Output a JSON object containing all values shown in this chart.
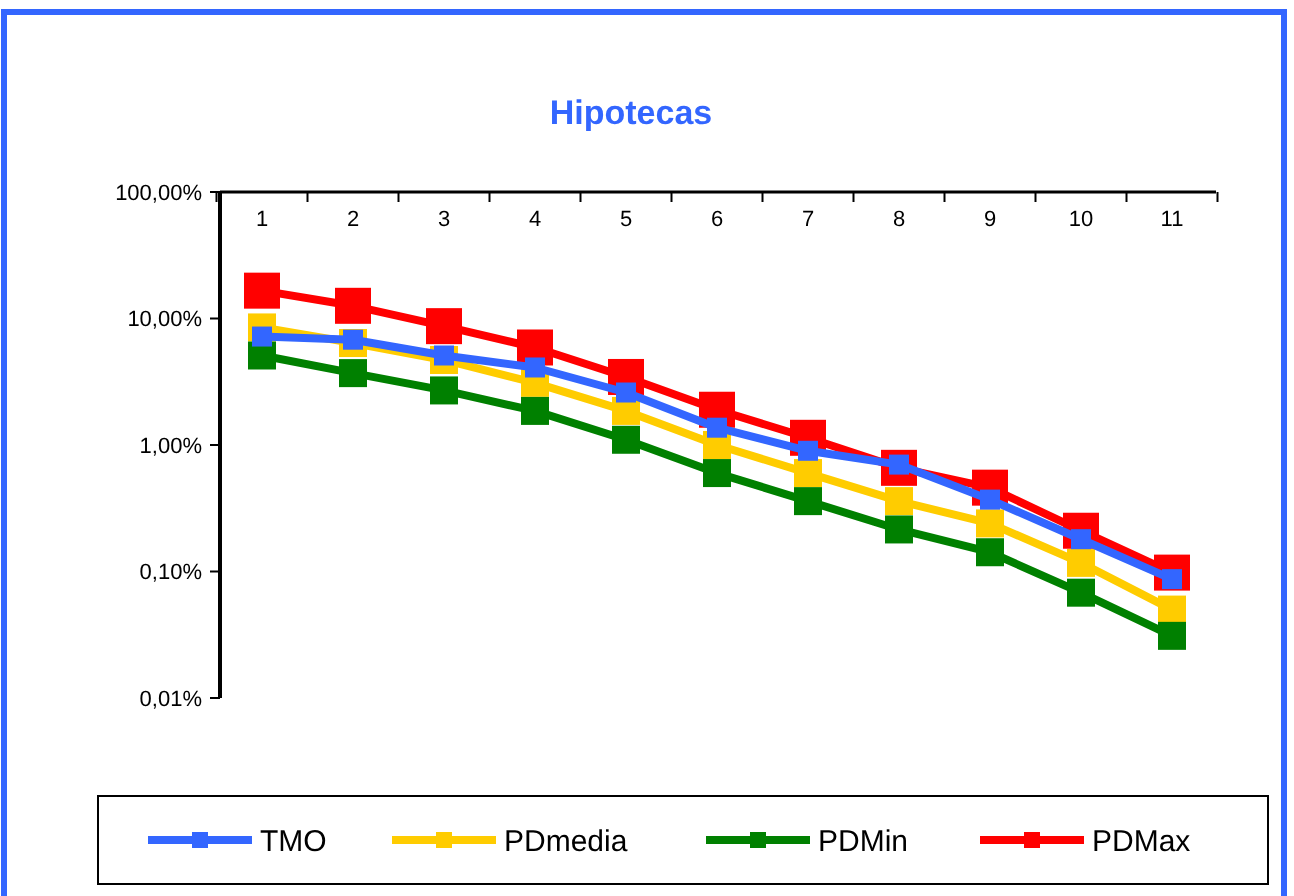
{
  "chart_data": {
    "type": "line",
    "title": "Hipotecas",
    "categories": [
      "1",
      "2",
      "3",
      "4",
      "5",
      "6",
      "7",
      "8",
      "9",
      "10",
      "11"
    ],
    "series": [
      {
        "name": "TMO",
        "color": "#3366ff",
        "values": [
          7.2,
          6.8,
          5.1,
          4.1,
          2.6,
          1.37,
          0.9,
          0.7,
          0.37,
          0.18,
          0.087
        ]
      },
      {
        "name": "PDmedia",
        "color": "#ffcc00",
        "values": [
          8.5,
          6.4,
          4.7,
          3.1,
          1.86,
          1.0,
          0.6,
          0.36,
          0.24,
          0.117,
          0.05
        ]
      },
      {
        "name": "PDMin",
        "color": "#008000",
        "values": [
          5.1,
          3.7,
          2.7,
          1.86,
          1.1,
          0.6,
          0.36,
          0.215,
          0.142,
          0.068,
          0.031
        ]
      },
      {
        "name": "PDMax",
        "color": "#ff0000",
        "values": [
          16.6,
          12.6,
          8.7,
          5.9,
          3.45,
          1.9,
          1.14,
          0.66,
          0.46,
          0.21,
          0.098
        ]
      }
    ],
    "log": true,
    "ylim": [
      0.01,
      100
    ],
    "yticks": [
      {
        "value": 100,
        "label": "100,00%"
      },
      {
        "value": 10,
        "label": "10,00%"
      },
      {
        "value": 1,
        "label": "1,00%"
      },
      {
        "value": 0.1,
        "label": "0,10%"
      },
      {
        "value": 0.01,
        "label": "0,01%"
      }
    ],
    "marker": "square",
    "line_style": "solid",
    "legend": "bottom",
    "grid": false
  }
}
